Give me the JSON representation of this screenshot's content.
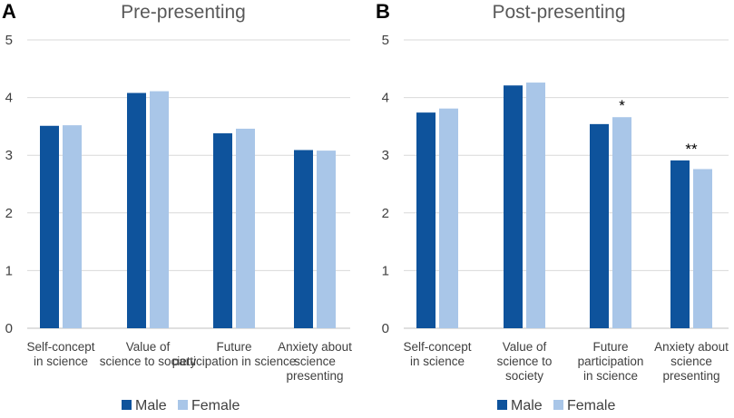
{
  "colors": {
    "male": "#0e539c",
    "female": "#a9c6e8"
  },
  "chart_data": [
    {
      "type": "bar",
      "panel": "A",
      "title": "Pre-presenting",
      "categories": [
        [
          "Self-concept",
          "in science"
        ],
        [
          "Value of",
          "science to society"
        ],
        [
          "Future",
          "participation in science"
        ],
        [
          "Anxiety about",
          "science",
          "presenting"
        ]
      ],
      "series": [
        {
          "name": "Male",
          "values": [
            3.51,
            4.08,
            3.38,
            3.09
          ]
        },
        {
          "name": "Female",
          "values": [
            3.52,
            4.11,
            3.46,
            3.08
          ]
        }
      ],
      "significance": [
        "",
        "",
        "",
        ""
      ],
      "ylim": [
        0,
        5
      ],
      "yticks": [
        0,
        1,
        2,
        3,
        4,
        5
      ],
      "xlabel": "",
      "ylabel": "",
      "legend": [
        "Male",
        "Female"
      ]
    },
    {
      "type": "bar",
      "panel": "B",
      "title": "Post-presenting",
      "categories": [
        [
          "Self-concept",
          "in science"
        ],
        [
          "Value of",
          "science to",
          "society"
        ],
        [
          "Future",
          "participation",
          "in science"
        ],
        [
          "Anxiety about",
          "science",
          "presenting"
        ]
      ],
      "series": [
        {
          "name": "Male",
          "values": [
            3.74,
            4.21,
            3.54,
            2.91
          ]
        },
        {
          "name": "Female",
          "values": [
            3.81,
            4.26,
            3.66,
            2.76
          ]
        }
      ],
      "significance": [
        "",
        "",
        "*",
        "**"
      ],
      "ylim": [
        0,
        5
      ],
      "yticks": [
        0,
        1,
        2,
        3,
        4,
        5
      ],
      "xlabel": "",
      "ylabel": "",
      "legend": [
        "Male",
        "Female"
      ]
    }
  ]
}
